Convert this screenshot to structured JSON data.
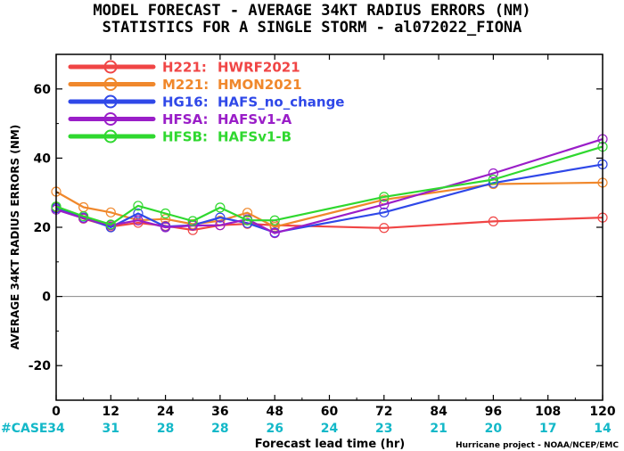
{
  "header": {
    "title": "MODEL FORECAST - AVERAGE 34KT RADIUS ERRORS (NM)",
    "subtitle": "STATISTICS FOR A SINGLE STORM - al072022_FIONA"
  },
  "footer": {
    "case_label": "#CASE",
    "credit": "Hurricane project - NOAA/NCEP/EMC"
  },
  "colors": {
    "H221": "#f04545",
    "M221": "#f0882c",
    "HG16": "#2f48e8",
    "HFSA": "#9a1ec8",
    "HFSB": "#2fd82f",
    "case_count": "#13b8c8"
  },
  "chart_data": {
    "type": "line",
    "title": "MODEL FORECAST - AVERAGE 34KT RADIUS ERRORS (NM)",
    "subtitle": "STATISTICS FOR A SINGLE STORM - al072022_FIONA",
    "xlabel": "Forecast lead time (hr)",
    "ylabel": "AVERAGE 34KT RADIUS ERRORS (NM)",
    "xlim": [
      0,
      120
    ],
    "ylim": [
      -30,
      70
    ],
    "x_ticks": [
      0,
      12,
      24,
      36,
      48,
      60,
      72,
      84,
      96,
      108,
      120
    ],
    "y_ticks": [
      -20,
      0,
      20,
      40,
      60
    ],
    "grid": false,
    "reference_line": 0,
    "legend_placement": "top-left",
    "x": [
      0,
      6,
      12,
      18,
      24,
      30,
      36,
      42,
      48,
      72,
      96,
      120
    ],
    "case_x": [
      0,
      12,
      24,
      36,
      48,
      60,
      72,
      84,
      96,
      108,
      120
    ],
    "case_counts": [
      34,
      31,
      28,
      28,
      26,
      24,
      23,
      21,
      20,
      17,
      14
    ],
    "series": [
      {
        "key": "H221",
        "label_code": "H221:",
        "label_name": "HWRF2021",
        "values": [
          25.8,
          22.5,
          20.2,
          21.3,
          20.4,
          19.2,
          20.6,
          21.0,
          20.6,
          19.8,
          21.7,
          22.8
        ]
      },
      {
        "key": "M221",
        "label_code": "M221:",
        "label_name": "HMON2021",
        "values": [
          30.3,
          25.8,
          24.3,
          22.0,
          22.4,
          20.9,
          21.9,
          24.2,
          20.1,
          28.0,
          32.5,
          32.9
        ]
      },
      {
        "key": "HG16",
        "label_code": "HG16:",
        "label_name": "HAFS_no_change",
        "values": [
          25.5,
          22.8,
          20.0,
          24.0,
          20.2,
          20.6,
          22.8,
          21.2,
          18.5,
          24.3,
          32.8,
          38.2
        ]
      },
      {
        "key": "HFSA",
        "label_code": "HFSA:",
        "label_name": "HAFSv1-A",
        "values": [
          25.1,
          22.6,
          20.6,
          22.0,
          20.0,
          20.5,
          20.6,
          22.3,
          18.3,
          26.6,
          35.6,
          45.5
        ]
      },
      {
        "key": "HFSB",
        "label_code": "HFSB:",
        "label_name": "HAFSv1-B",
        "values": [
          26.0,
          23.2,
          20.8,
          26.2,
          24.0,
          21.8,
          25.7,
          22.0,
          22.0,
          28.8,
          33.8,
          43.3
        ]
      }
    ]
  }
}
